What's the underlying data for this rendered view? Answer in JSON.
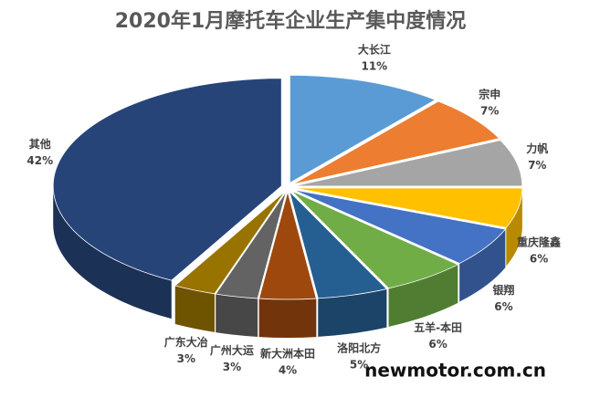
{
  "chart_data": {
    "type": "pie",
    "title": "2020年1月摩托车企业生产集中度情况",
    "categories": [
      "大长江",
      "宗申",
      "力帆",
      "重庆隆鑫",
      "银翔",
      "五羊-本田",
      "洛阳北方",
      "新大洲本田",
      "广州大运",
      "广东大冶",
      "其他"
    ],
    "values": [
      11,
      7,
      7,
      6,
      6,
      6,
      5,
      4,
      3,
      3,
      42
    ],
    "value_labels": [
      "11%",
      "7%",
      "7%",
      "6%",
      "6%",
      "6%",
      "5%",
      "4%",
      "3%",
      "3%",
      "42%"
    ],
    "colors": [
      "#5b9bd5",
      "#ed7d31",
      "#a5a5a5",
      "#ffc000",
      "#4472c4",
      "#70ad47",
      "#255e91",
      "#9e480e",
      "#636363",
      "#997300",
      "#264478"
    ],
    "watermark": "newmotor.com.cn"
  }
}
